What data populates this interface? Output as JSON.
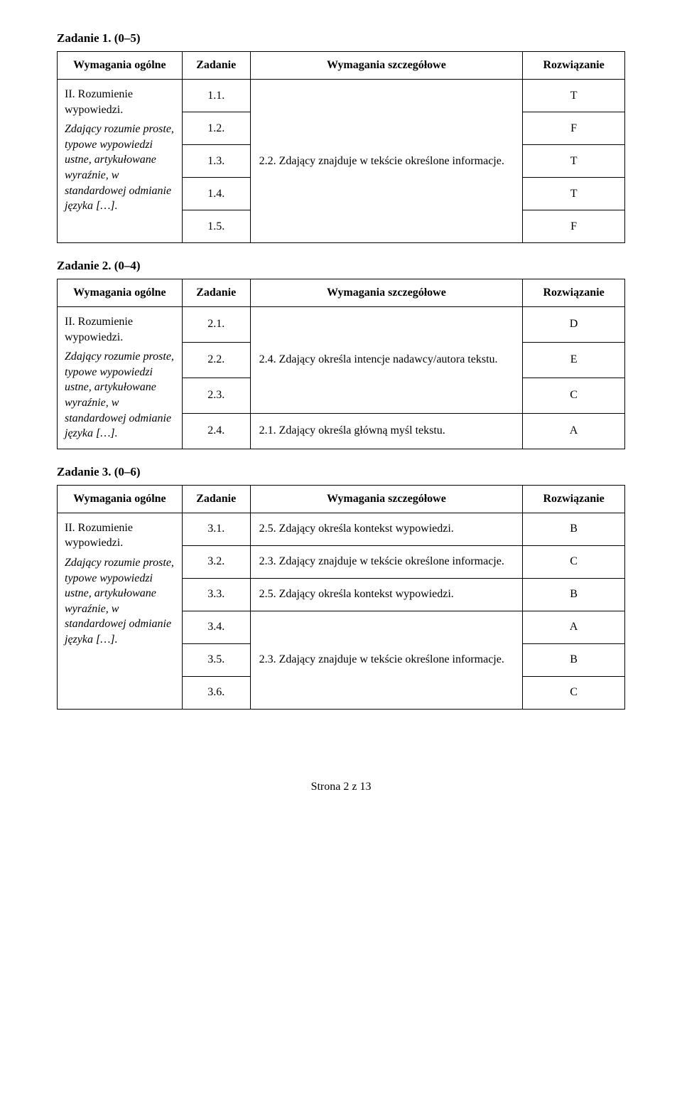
{
  "footer": "Strona 2 z 13",
  "tasks": [
    {
      "title": "Zadanie 1. (0–5)",
      "headers": {
        "gen": "Wymagania ogólne",
        "task": "Zadanie",
        "det": "Wymagania szczegółowe",
        "sol": "Rozwiązanie"
      },
      "general_main": "II. Rozumienie wypowiedzi.",
      "general_desc": "Zdający rozumie proste, typowe wypowiedzi ustne, artykułowane wyraźnie, w standardowej odmianie języka […].",
      "shared_detail": "2.2. Zdający znajduje w tekście określone informacje.",
      "rows": [
        {
          "num": "1.1.",
          "sol": "T"
        },
        {
          "num": "1.2.",
          "sol": "F"
        },
        {
          "num": "1.3.",
          "sol": "T"
        },
        {
          "num": "1.4.",
          "sol": "T"
        },
        {
          "num": "1.5.",
          "sol": "F"
        }
      ]
    },
    {
      "title": "Zadanie 2. (0–4)",
      "headers": {
        "gen": "Wymagania ogólne",
        "task": "Zadanie",
        "det": "Wymagania szczegółowe",
        "sol": "Rozwiązanie"
      },
      "general_main": "II. Rozumienie wypowiedzi.",
      "general_desc": "Zdający rozumie proste, typowe wypowiedzi ustne, artykułowane wyraźnie, w standardowej odmianie języka […].",
      "detail_a": "2.4. Zdający określa intencje nadawcy/autora tekstu.",
      "detail_b": "2.1. Zdający określa główną myśl tekstu.",
      "rows": [
        {
          "num": "2.1.",
          "sol": "D"
        },
        {
          "num": "2.2.",
          "sol": "E"
        },
        {
          "num": "2.3.",
          "sol": "C"
        },
        {
          "num": "2.4.",
          "sol": "A"
        }
      ]
    },
    {
      "title": "Zadanie 3. (0–6)",
      "headers": {
        "gen": "Wymagania ogólne",
        "task": "Zadanie",
        "det": "Wymagania szczegółowe",
        "sol": "Rozwiązanie"
      },
      "general_main": "II. Rozumienie wypowiedzi.",
      "general_desc": "Zdający rozumie proste, typowe wypowiedzi ustne, artykułowane wyraźnie, w standardowej odmianie języka […].",
      "d31": "2.5. Zdający określa kontekst wypowiedzi.",
      "d32": "2.3. Zdający znajduje w tekście określone informacje.",
      "d33": "2.5. Zdający określa kontekst wypowiedzi.",
      "d34": "2.3. Zdający znajduje w tekście określone informacje.",
      "rows": [
        {
          "num": "3.1.",
          "sol": "B"
        },
        {
          "num": "3.2.",
          "sol": "C"
        },
        {
          "num": "3.3.",
          "sol": "B"
        },
        {
          "num": "3.4.",
          "sol": "A"
        },
        {
          "num": "3.5.",
          "sol": "B"
        },
        {
          "num": "3.6.",
          "sol": "C"
        }
      ]
    }
  ]
}
